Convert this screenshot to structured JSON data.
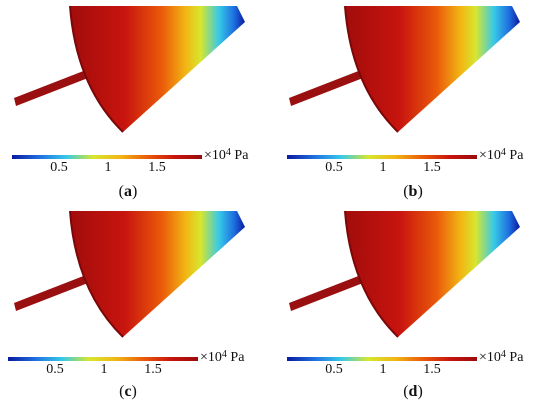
{
  "colormap": [
    "#0a1a9e",
    "#1e6fe0",
    "#37c9e8",
    "#d7e62e",
    "#f2b614",
    "#ea5a0a",
    "#c8140e",
    "#9a0b0b"
  ],
  "tick_labels": [
    "0.5",
    "1",
    "1.5"
  ],
  "unit": {
    "times": "×10",
    "exp": "4",
    "suffix": " Pa"
  },
  "panels": [
    {
      "label": "a"
    },
    {
      "label": "b"
    },
    {
      "label": "c"
    },
    {
      "label": "d"
    }
  ]
}
